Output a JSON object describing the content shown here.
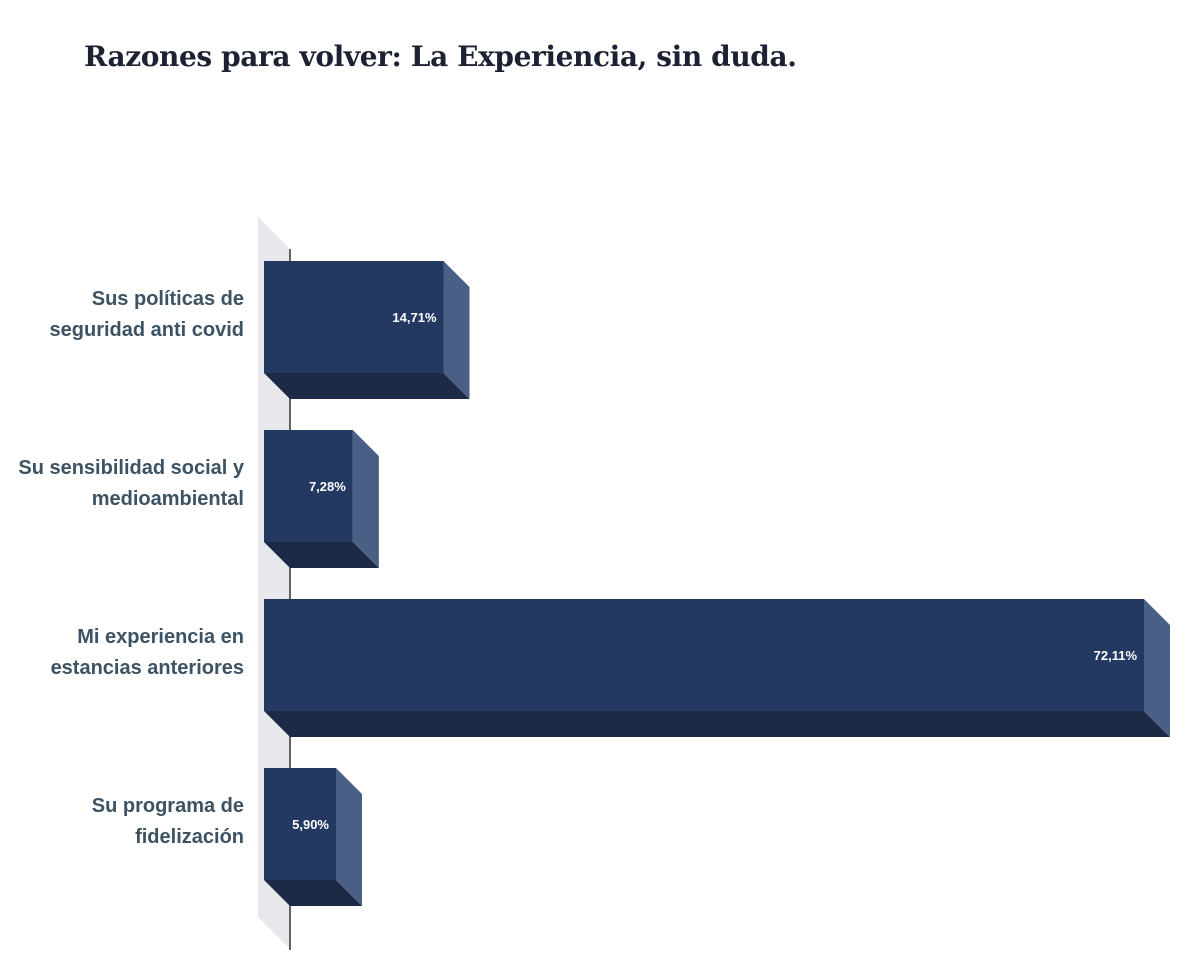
{
  "title": "Razones para volver: La Experiencia, sin duda.",
  "colors": {
    "bar_front": "#243962",
    "bar_bottom": "#1c2a45",
    "bar_side": "#4a5f85",
    "wall": "#e8e8ec",
    "axis": "#333333",
    "category_text": "#3d5262",
    "value_text": "#ffffff",
    "title_text": "#1c2233"
  },
  "chart_data": {
    "type": "bar",
    "orientation": "horizontal",
    "style": "3d",
    "categories": [
      [
        "Sus políticas de",
        "seguridad anti covid"
      ],
      [
        "Su sensibilidad social y",
        "medioambiental"
      ],
      [
        "Mi experiencia en",
        "estancias anteriores"
      ],
      [
        "Su programa de",
        "fidelización"
      ]
    ],
    "values": [
      14.71,
      7.28,
      72.11,
      5.9
    ],
    "value_labels": [
      "14,71%",
      "7,28%",
      "72,11%",
      "5,90%"
    ],
    "unit": "%",
    "title": "Razones para volver: La Experiencia, sin duda.",
    "xlabel": "",
    "ylabel": "",
    "xlim": [
      0,
      72.11
    ],
    "grid": false,
    "legend": "none"
  }
}
